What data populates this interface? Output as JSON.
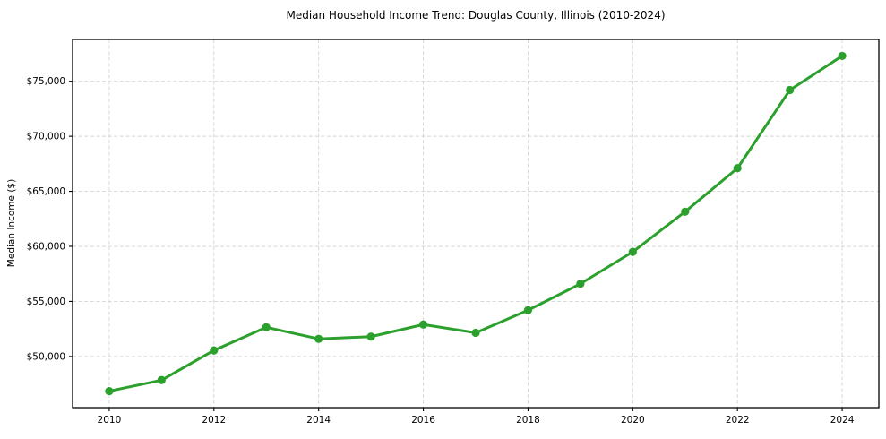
{
  "figure": {
    "background": "#ffffff"
  },
  "chart_data": {
    "type": "line",
    "title": "Median Household Income Trend: Douglas County, Illinois (2010-2024)",
    "xlabel": "",
    "ylabel": "Median Income ($)",
    "x": [
      2010,
      2011,
      2012,
      2013,
      2014,
      2015,
      2016,
      2017,
      2018,
      2019,
      2020,
      2021,
      2022,
      2023,
      2024
    ],
    "series": [
      {
        "name": "Median Household Income",
        "values": [
          46850,
          47850,
          50550,
          52650,
          51600,
          51800,
          52900,
          52150,
          54200,
          56600,
          59500,
          63150,
          67100,
          74200,
          77300
        ]
      }
    ],
    "xticks": [
      2010,
      2012,
      2014,
      2016,
      2018,
      2020,
      2022,
      2024
    ],
    "xtick_labels": [
      "2010",
      "2012",
      "2014",
      "2016",
      "2018",
      "2020",
      "2022",
      "2024"
    ],
    "ytick_values": [
      50000,
      55000,
      60000,
      65000,
      70000,
      75000
    ],
    "ytick_labels": [
      "$50,000",
      "$55,000",
      "$60,000",
      "$65,000",
      "$70,000",
      "$75,000"
    ],
    "xlim": [
      2009.3,
      2024.7
    ],
    "ylim": [
      45350,
      78800
    ],
    "grid": true,
    "grid_style": "dashed",
    "legend_position": "none",
    "colors": {
      "line": "#2ca02c",
      "marker": "#2ca02c",
      "grid": "#d4d4d4",
      "spine": "#000000",
      "text": "#000000"
    }
  }
}
